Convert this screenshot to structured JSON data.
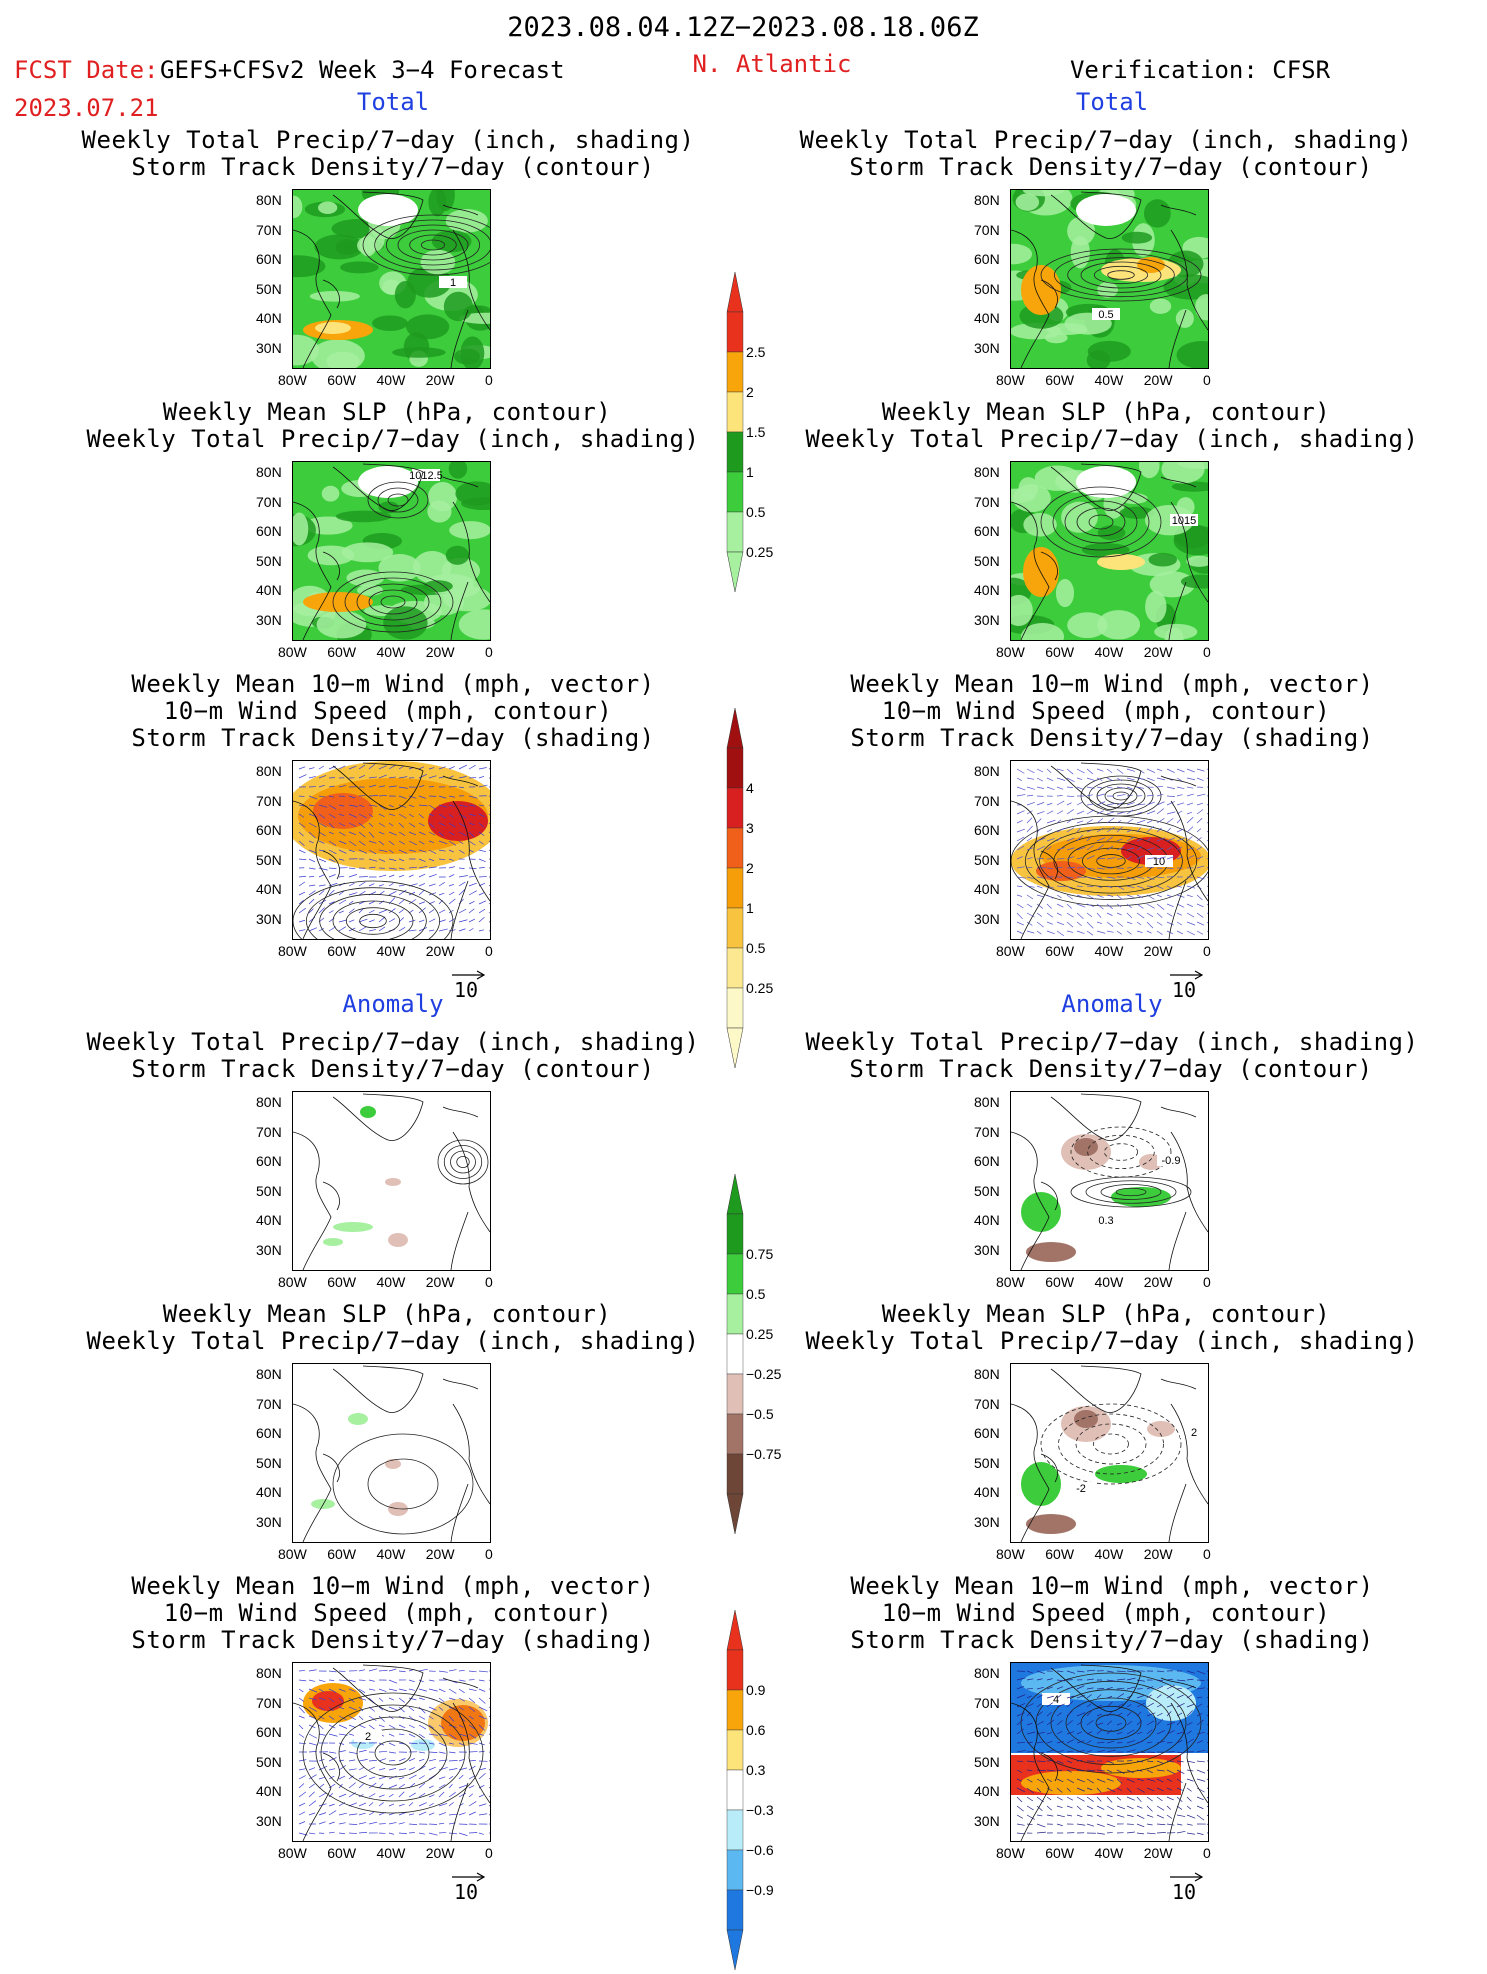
{
  "header": {
    "date_range": "2023.08.04.12Z−2023.08.18.06Z",
    "fcst_label": "FCST Date:",
    "fcst_model": "GEFS+CFSv2 Week 3−4 Forecast",
    "fcst_date": "2023.07.21",
    "region": "N. Atlantic",
    "verification": "Verification: CFSR"
  },
  "sections": {
    "total": "Total",
    "anomaly": "Anomaly"
  },
  "titles": {
    "precip_track": [
      "Weekly Total Precip/7−day (inch, shading)",
      "Storm Track Density/7−day (contour)"
    ],
    "slp_precip": [
      "Weekly Mean SLP (hPa, contour)",
      "Weekly Total Precip/7−day (inch, shading)"
    ],
    "wind_track": [
      "Weekly Mean 10−m Wind (mph, vector)",
      "10−m Wind Speed (mph, contour)",
      "Storm Track Density/7−day (shading)"
    ]
  },
  "axes": {
    "lat_ticks": [
      "80N",
      "70N",
      "60N",
      "50N",
      "40N",
      "30N"
    ],
    "lon_ticks": [
      "80W",
      "60W",
      "40W",
      "20W",
      "0"
    ]
  },
  "vector_ref": "10",
  "contour_labels": {
    "left_precip_track_total": "1",
    "right_precip_track_total": "0.5",
    "left_slp_total": "1012.5",
    "right_slp_total": "1015",
    "right_wind_total": "10",
    "right_precip_track_anom_a": "-0.9",
    "right_precip_track_anom_b": "0.3",
    "right_slp_anom_a": "-2",
    "right_slp_anom_b": "2",
    "left_wind_anom": "2",
    "right_wind_anom": "4"
  },
  "colorbars": {
    "precip_total": {
      "labels": [
        "2.5",
        "2",
        "1.5",
        "1",
        "0.5",
        "0.25"
      ],
      "colors": [
        "#e8321e",
        "#f7a50a",
        "#fde47a",
        "#1e9b1e",
        "#3ccc3c",
        "#a6f0a0"
      ]
    },
    "track_total": {
      "labels": [
        "4",
        "3",
        "2",
        "1",
        "0.5",
        "0.25"
      ],
      "colors": [
        "#a01010",
        "#d82020",
        "#f0601a",
        "#f59e0a",
        "#f8c440",
        "#fbe890",
        "#fdf8c8"
      ]
    },
    "precip_anom": {
      "labels": [
        "0.75",
        "0.5",
        "0.25",
        "−0.25",
        "−0.5",
        "−0.75"
      ],
      "colors": [
        "#1e9b1e",
        "#3ccc3c",
        "#a6f0a0",
        "#ffffff",
        "#e0c0b6",
        "#a27468",
        "#6e4638"
      ]
    },
    "track_anom": {
      "labels": [
        "0.9",
        "0.6",
        "0.3",
        "−0.3",
        "−0.6",
        "−0.9"
      ],
      "colors": [
        "#e8321e",
        "#f7a50a",
        "#fde47a",
        "#ffffff",
        "#b8ecf8",
        "#5cb8f0",
        "#1e78e0"
      ]
    }
  },
  "chart_data": [
    {
      "type": "heatmap",
      "panel": "forecast-total-precip-storm-track",
      "shading": "precip_total",
      "region": "N. Atlantic",
      "xlim": [
        "80W",
        "0"
      ],
      "ylim": [
        "30N",
        "80N"
      ]
    },
    {
      "type": "heatmap",
      "panel": "verification-total-precip-storm-track",
      "shading": "precip_total",
      "region": "N. Atlantic",
      "xlim": [
        "80W",
        "0"
      ],
      "ylim": [
        "30N",
        "80N"
      ]
    },
    {
      "type": "heatmap",
      "panel": "forecast-total-slp-precip",
      "shading": "precip_total",
      "region": "N. Atlantic",
      "xlim": [
        "80W",
        "0"
      ],
      "ylim": [
        "30N",
        "80N"
      ]
    },
    {
      "type": "heatmap",
      "panel": "verification-total-slp-precip",
      "shading": "precip_total",
      "region": "N. Atlantic",
      "xlim": [
        "80W",
        "0"
      ],
      "ylim": [
        "30N",
        "80N"
      ]
    },
    {
      "type": "heatmap",
      "panel": "forecast-total-wind-track",
      "shading": "track_total",
      "region": "N. Atlantic",
      "xlim": [
        "80W",
        "0"
      ],
      "ylim": [
        "30N",
        "80N"
      ]
    },
    {
      "type": "heatmap",
      "panel": "verification-total-wind-track",
      "shading": "track_total",
      "region": "N. Atlantic",
      "xlim": [
        "80W",
        "0"
      ],
      "ylim": [
        "30N",
        "80N"
      ]
    },
    {
      "type": "heatmap",
      "panel": "forecast-anomaly-precip-storm-track",
      "shading": "precip_anom",
      "region": "N. Atlantic",
      "xlim": [
        "80W",
        "0"
      ],
      "ylim": [
        "30N",
        "80N"
      ]
    },
    {
      "type": "heatmap",
      "panel": "verification-anomaly-precip-storm-track",
      "shading": "precip_anom",
      "region": "N. Atlantic",
      "xlim": [
        "80W",
        "0"
      ],
      "ylim": [
        "30N",
        "80N"
      ]
    },
    {
      "type": "heatmap",
      "panel": "forecast-anomaly-slp-precip",
      "shading": "precip_anom",
      "region": "N. Atlantic",
      "xlim": [
        "80W",
        "0"
      ],
      "ylim": [
        "30N",
        "80N"
      ]
    },
    {
      "type": "heatmap",
      "panel": "verification-anomaly-slp-precip",
      "shading": "precip_anom",
      "region": "N. Atlantic",
      "xlim": [
        "80W",
        "0"
      ],
      "ylim": [
        "30N",
        "80N"
      ]
    },
    {
      "type": "heatmap",
      "panel": "forecast-anomaly-wind-track",
      "shading": "track_anom",
      "region": "N. Atlantic",
      "xlim": [
        "80W",
        "0"
      ],
      "ylim": [
        "30N",
        "80N"
      ]
    },
    {
      "type": "heatmap",
      "panel": "verification-anomaly-wind-track",
      "shading": "track_anom",
      "region": "N. Atlantic",
      "xlim": [
        "80W",
        "0"
      ],
      "ylim": [
        "30N",
        "80N"
      ]
    }
  ]
}
